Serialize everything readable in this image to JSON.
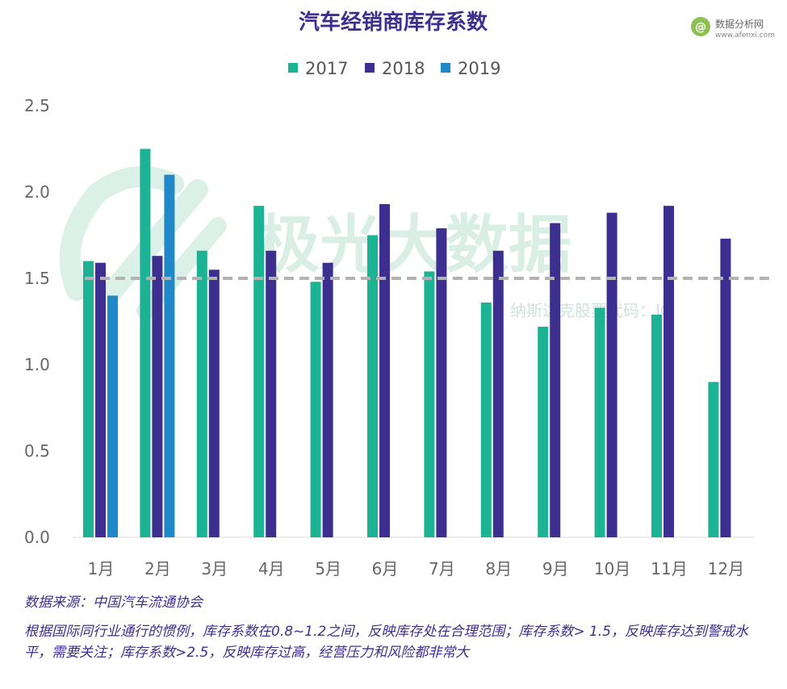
{
  "brand": {
    "name": "数据分析网",
    "url": "www.afenxi.com",
    "logo_letter": "@"
  },
  "watermark": {
    "main": "极光大数据",
    "sub": "纳斯达克股票代码：JG"
  },
  "chart_data": {
    "type": "bar",
    "title": "汽车经销商库存系数",
    "categories": [
      "1月",
      "2月",
      "3月",
      "4月",
      "5月",
      "6月",
      "7月",
      "8月",
      "9月",
      "10月",
      "11月",
      "12月"
    ],
    "series": [
      {
        "name": "2017",
        "color": "#1bb394",
        "values": [
          1.6,
          2.25,
          1.66,
          1.92,
          1.48,
          1.75,
          1.54,
          1.36,
          1.22,
          1.33,
          1.29,
          0.9
        ]
      },
      {
        "name": "2018",
        "color": "#3d2f8f",
        "values": [
          1.59,
          1.63,
          1.55,
          1.66,
          1.59,
          1.93,
          1.79,
          1.66,
          1.82,
          1.88,
          1.92,
          1.73
        ]
      },
      {
        "name": "2019",
        "color": "#1e88c9",
        "values": [
          1.4,
          2.1,
          null,
          null,
          null,
          null,
          null,
          null,
          null,
          null,
          null,
          null
        ]
      }
    ],
    "y_ticks": [
      "0.0",
      "0.5",
      "1.0",
      "1.5",
      "2.0",
      "2.5"
    ],
    "ylim": [
      0,
      2.5
    ],
    "reference_line": {
      "value": 1.5,
      "style": "dashed",
      "color": "#b3b3b3"
    },
    "legend_position": "top-center",
    "xlabel": "",
    "ylabel": ""
  },
  "notes": {
    "source": "数据来源：中国汽车流通协会",
    "description": "根据国际同行业通行的惯例，库存系数在0.8~1.2之间，反映库存处在合理范围；库存系数> 1.5，反映库存达到警戒水平，需要关注；库存系数>2.5，反映库存过高，经营压力和风险都非常大"
  }
}
